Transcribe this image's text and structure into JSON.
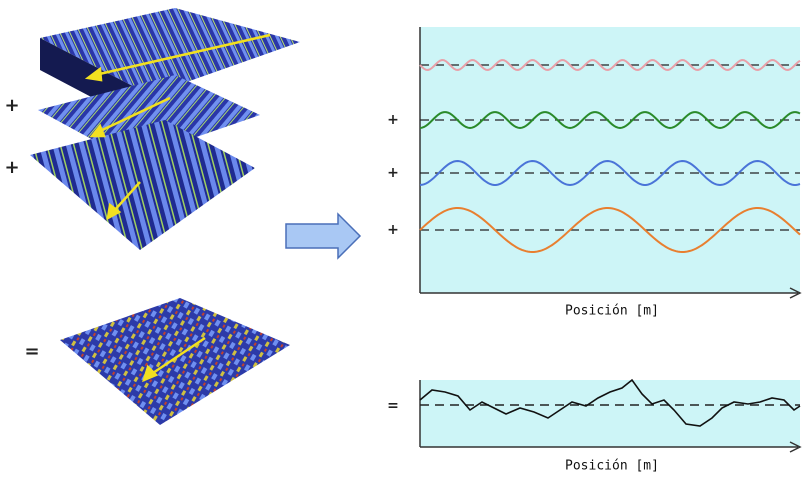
{
  "left": {
    "operators": [
      "+",
      "+",
      "="
    ]
  },
  "right": {
    "operators": [
      "+",
      "+",
      "+",
      "="
    ],
    "axis_labels": [
      "Posición [m]",
      "Posición [m]"
    ]
  }
}
